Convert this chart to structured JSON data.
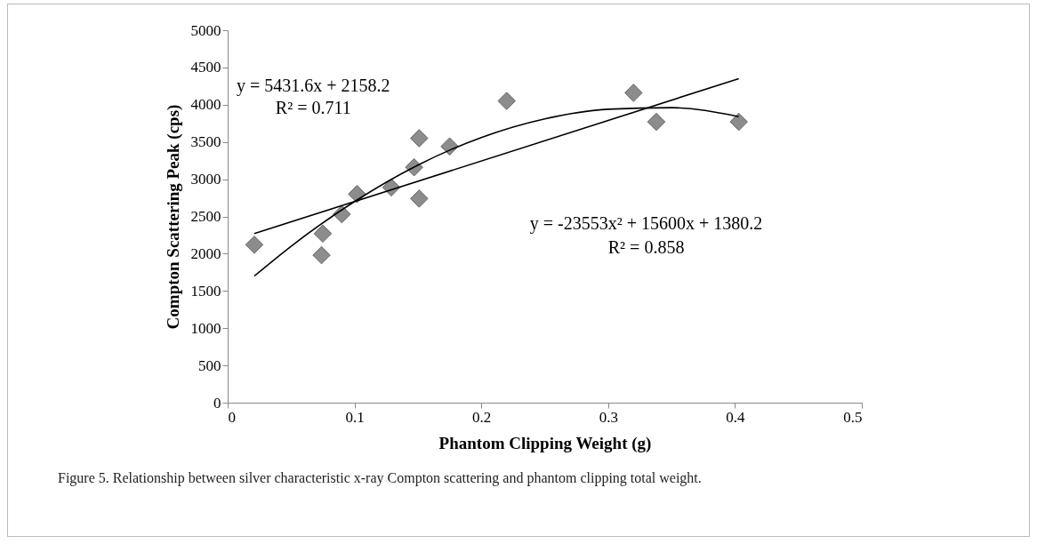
{
  "chart_data": {
    "type": "scatter",
    "xlabel": "Phantom Clipping Weight (g)",
    "ylabel": "Compton Scattering Peak (cps)",
    "x": [
      0.021,
      0.074,
      0.075,
      0.09,
      0.102,
      0.129,
      0.147,
      0.151,
      0.151,
      0.175,
      0.22,
      0.32,
      0.338,
      0.403
    ],
    "xlim": [
      0,
      0.5
    ],
    "xticks": [
      0,
      0.1,
      0.2,
      0.3,
      0.4,
      0.5
    ],
    "ylim": [
      0,
      5000
    ],
    "yticks": [
      0,
      500,
      1000,
      1500,
      2000,
      2500,
      3000,
      3500,
      4000,
      4500,
      5000
    ],
    "grid": false,
    "series": [
      {
        "marker": "diamond",
        "color": "#8c8c8c",
        "values": [
          2120,
          1980,
          2270,
          2530,
          2800,
          2890,
          3160,
          3550,
          2740,
          3440,
          4050,
          4160,
          3770,
          3770
        ]
      },
      {
        "type": "line",
        "color": "#000000",
        "x": [
          0.021,
          0.403
        ],
        "values": [
          2270,
          4350
        ]
      },
      {
        "type": "line",
        "color": "#000000",
        "x": [
          0.021,
          0.05,
          0.1,
          0.15,
          0.2,
          0.25,
          0.3,
          0.35,
          0.403
        ],
        "values": [
          1700,
          2100,
          2700,
          3190,
          3560,
          3810,
          3940,
          3960,
          3840
        ]
      }
    ],
    "annotations": [
      "y = 5431.6x + 2158.2",
      "R² = 0.711",
      "y = -23553x² + 15600x + 1380.2",
      "R² = 0.858",
      "Figure 5.  Relationship between silver characteristic x-ray Compton scattering and phantom clipping total weight."
    ]
  }
}
